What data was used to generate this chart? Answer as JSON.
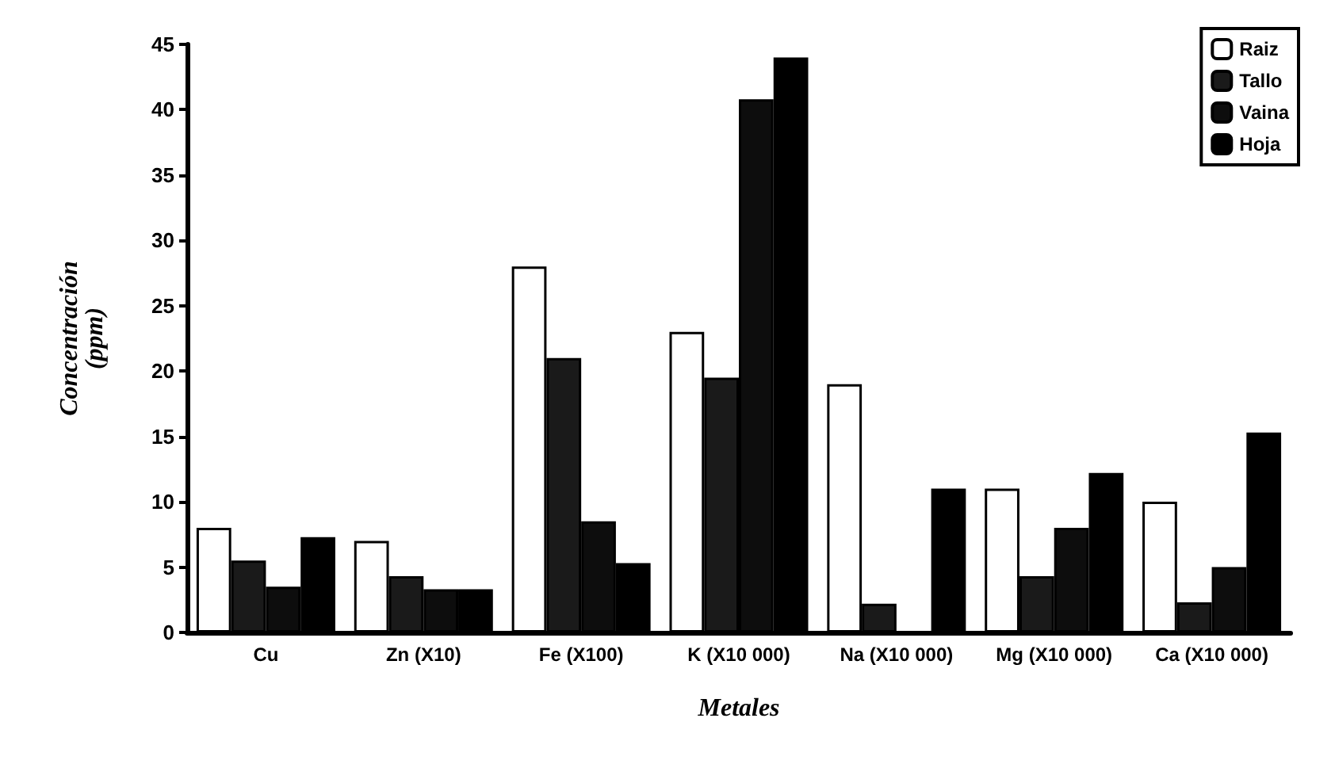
{
  "chart_data": {
    "type": "bar",
    "xlabel": "Metales",
    "ylabel": "Concentración\n(ppm)",
    "categories": [
      "Cu",
      "Zn (X10)",
      "Fe (X100)",
      "K (X10 000)",
      "Na (X10 000)",
      "Mg (X10 000)",
      "Ca (X10 000)"
    ],
    "series": [
      {
        "name": "Raiz",
        "color": "#ffffff",
        "values": [
          8,
          7,
          28,
          23,
          19,
          11,
          10
        ]
      },
      {
        "name": "Tallo",
        "color": "#1a1a1a",
        "values": [
          5.5,
          4.3,
          21,
          19.5,
          2.2,
          4.3,
          2.3
        ]
      },
      {
        "name": "Vaina",
        "color": "#0d0d0d",
        "values": [
          3.5,
          3.3,
          8.5,
          40.8,
          0,
          8,
          5
        ]
      },
      {
        "name": "Hoja",
        "color": "#000000",
        "values": [
          7.3,
          3.3,
          5.3,
          44,
          11,
          12.2,
          15.3
        ]
      }
    ],
    "ylim": [
      0,
      45
    ],
    "yticks": [
      0,
      5,
      10,
      15,
      20,
      25,
      30,
      35,
      40,
      45
    ],
    "grid": false,
    "legend": "top right"
  }
}
